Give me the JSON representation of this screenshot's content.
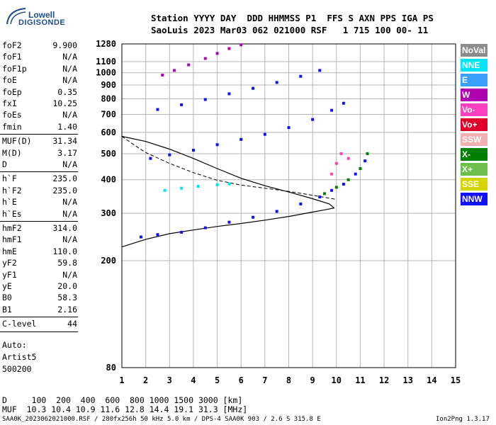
{
  "logo": {
    "line1": "Lowell",
    "line2": "DIGISONDE"
  },
  "header": {
    "line1": "Station YYYY DAY  DDD HHMMSS P1  FFS S AXN PPS IGA PS",
    "line2": "SaoLuis 2023 Mar03 062 021000 RSF   1 715 100 00- 11"
  },
  "params_group1": [
    {
      "name": "foF2",
      "value": "9.900"
    },
    {
      "name": "foF1",
      "value": "N/A"
    },
    {
      "name": "foF1p",
      "value": "N/A"
    },
    {
      "name": "foE",
      "value": "N/A"
    },
    {
      "name": "foEp",
      "value": "0.35"
    },
    {
      "name": "fxI",
      "value": "10.25"
    },
    {
      "name": "foEs",
      "value": "N/A"
    },
    {
      "name": "fmin",
      "value": "1.40"
    }
  ],
  "params_group2": [
    {
      "name": "MUF(D)",
      "value": "31.34"
    },
    {
      "name": "M(D)",
      "value": "3.17"
    },
    {
      "name": "D",
      "value": "N/A"
    }
  ],
  "params_group3": [
    {
      "name": "h`F",
      "value": "235.0"
    },
    {
      "name": "h`F2",
      "value": "235.0"
    },
    {
      "name": "h`E",
      "value": "N/A"
    },
    {
      "name": "h`Es",
      "value": "N/A"
    }
  ],
  "params_group4": [
    {
      "name": "hmF2",
      "value": "314.0"
    },
    {
      "name": "hmF1",
      "value": "N/A"
    },
    {
      "name": "hmE",
      "value": "110.0"
    },
    {
      "name": "yF2",
      "value": "59.8"
    },
    {
      "name": "yF1",
      "value": "N/A"
    },
    {
      "name": "yE",
      "value": "20.0"
    },
    {
      "name": "B0",
      "value": "58.3"
    },
    {
      "name": "B1",
      "value": "2.16"
    }
  ],
  "params_group5": [
    {
      "name": "C-level",
      "value": "44"
    }
  ],
  "misc": {
    "auto": "Auto:",
    "artist": "Artist5",
    "code": "500200"
  },
  "legend": [
    {
      "label": "NoVal",
      "color": "#8c8c8c"
    },
    {
      "label": "NNE",
      "color": "#00e5ff"
    },
    {
      "label": "E",
      "color": "#3aa0ff"
    },
    {
      "label": "W",
      "color": "#b000b0"
    },
    {
      "label": "Vo-",
      "color": "#ff40c0"
    },
    {
      "label": "Vo+",
      "color": "#e0002a"
    },
    {
      "label": "SSW",
      "color": "#f4b0b0"
    },
    {
      "label": "X-",
      "color": "#008000"
    },
    {
      "label": "X+",
      "color": "#6cbf4a"
    },
    {
      "label": "SSE",
      "color": "#d4d400"
    },
    {
      "label": "NNW",
      "color": "#1010ff"
    }
  ],
  "bottom": {
    "d_line": "D     100  200  400  600  800 1000 1500 3000 [km]",
    "muf_line": "MUF  10.3 10.4 10.9 11.6 12.8 14.4 19.1 31.3 [MHz]"
  },
  "footer": {
    "left": "SAA0K_2023062021000.RSF / 280fx256h 50 kHz 5.0 km / DPS-4 SAA0K 903 / 2.6 S 315.8 E",
    "right": "Ion2Png 1.3.17"
  },
  "chart_data": {
    "type": "scatter",
    "title": "",
    "xlabel": "",
    "ylabel": "",
    "xlim": [
      1,
      15
    ],
    "ylim": [
      80,
      1280
    ],
    "x_ticks": [
      1,
      2,
      3,
      4,
      5,
      6,
      7,
      8,
      9,
      10,
      11,
      12,
      13,
      14,
      15
    ],
    "y_ticks": [
      80,
      200,
      300,
      400,
      500,
      600,
      700,
      800,
      900,
      1000,
      1100,
      1280
    ],
    "y_scale": "logarithmic",
    "grid": true,
    "legend_position": "right",
    "series": [
      {
        "color": "#1010ff",
        "points": [
          [
            1.8,
            245
          ],
          [
            2.5,
            250
          ],
          [
            3.5,
            255
          ],
          [
            4.5,
            265
          ],
          [
            5.5,
            278
          ],
          [
            6.5,
            290
          ],
          [
            7.5,
            305
          ],
          [
            8.5,
            325
          ],
          [
            9.3,
            345
          ],
          [
            9.8,
            365
          ],
          [
            10.3,
            385
          ],
          [
            10.8,
            420
          ],
          [
            11.2,
            470
          ]
        ]
      },
      {
        "color": "#1010ff",
        "points": [
          [
            2.2,
            480
          ],
          [
            3,
            495
          ],
          [
            4,
            515
          ],
          [
            5,
            540
          ],
          [
            6,
            565
          ],
          [
            7,
            590
          ],
          [
            8,
            625
          ],
          [
            9,
            670
          ],
          [
            9.8,
            725
          ],
          [
            10.3,
            770
          ]
        ]
      },
      {
        "color": "#1010ff",
        "points": [
          [
            2.5,
            730
          ],
          [
            3.5,
            760
          ],
          [
            4.5,
            795
          ],
          [
            5.5,
            835
          ],
          [
            6.5,
            875
          ],
          [
            7.5,
            920
          ],
          [
            8.5,
            970
          ],
          [
            9.3,
            1020
          ]
        ]
      },
      {
        "color": "#b000b0",
        "points": [
          [
            2.7,
            980
          ],
          [
            3.2,
            1020
          ],
          [
            3.8,
            1070
          ],
          [
            4.5,
            1130
          ],
          [
            5,
            1180
          ],
          [
            5.5,
            1230
          ],
          [
            6,
            1270
          ]
        ]
      },
      {
        "color": "#00e5ff",
        "points": [
          [
            2.8,
            365
          ],
          [
            3.5,
            372
          ],
          [
            4.2,
            378
          ],
          [
            5,
            383
          ],
          [
            5.5,
            386
          ]
        ]
      },
      {
        "color": "#008000",
        "points": [
          [
            9.5,
            355
          ],
          [
            10,
            375
          ],
          [
            10.5,
            400
          ],
          [
            11,
            440
          ],
          [
            11.3,
            500
          ]
        ]
      },
      {
        "color": "#ff40c0",
        "points": [
          [
            9.8,
            420
          ],
          [
            10,
            460
          ],
          [
            10.2,
            500
          ],
          [
            10.5,
            480
          ]
        ]
      }
    ],
    "profile_curve": [
      [
        1,
        225
      ],
      [
        2,
        240
      ],
      [
        3,
        252
      ],
      [
        4,
        260
      ],
      [
        5,
        268
      ],
      [
        6,
        275
      ],
      [
        7,
        283
      ],
      [
        8,
        292
      ],
      [
        8.9,
        302
      ],
      [
        9.6,
        310
      ],
      [
        9.9,
        314
      ],
      [
        9.7,
        325
      ],
      [
        9,
        340
      ],
      [
        8,
        360
      ],
      [
        7,
        380
      ],
      [
        6,
        405
      ],
      [
        5,
        440
      ],
      [
        4,
        480
      ],
      [
        3,
        520
      ],
      [
        2,
        555
      ],
      [
        1,
        580
      ]
    ],
    "muf_curve": [
      [
        1,
        580
      ],
      [
        1.5,
        540
      ],
      [
        2,
        505
      ],
      [
        3,
        460
      ],
      [
        4,
        425
      ],
      [
        5,
        398
      ],
      [
        6,
        382
      ],
      [
        7,
        372
      ],
      [
        8,
        362
      ],
      [
        8.5,
        356
      ],
      [
        9,
        350
      ],
      [
        9.5,
        344
      ],
      [
        10,
        338
      ]
    ]
  }
}
